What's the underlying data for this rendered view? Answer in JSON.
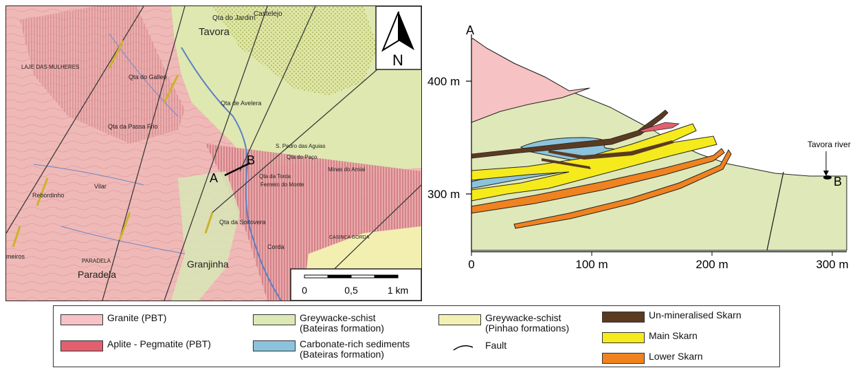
{
  "map": {
    "north_label": "N",
    "scale_ticks": [
      "0",
      "0,5",
      "1 km"
    ],
    "section_label_a": "A",
    "section_label_b": "B",
    "places": [
      {
        "name": "Tavora"
      },
      {
        "name": "LAJE DAS MULHERES"
      },
      {
        "name": "Qta do Jardim"
      },
      {
        "name": "Castelejo"
      },
      {
        "name": "Qta do Galleo"
      },
      {
        "name": "Qta de Avelera"
      },
      {
        "name": "Qta da Passa Frio"
      },
      {
        "name": "S. Pedro das Aguias"
      },
      {
        "name": "Qta do Paço"
      },
      {
        "name": "Minas do Amial"
      },
      {
        "name": "Qta da Torda"
      },
      {
        "name": "Ferreiro do Monte"
      },
      {
        "name": "Vilar"
      },
      {
        "name": "Rebordinho"
      },
      {
        "name": "Qta da Soitovera"
      },
      {
        "name": "Corda"
      },
      {
        "name": "CASINCA GORDA"
      },
      {
        "name": "PARADELA"
      },
      {
        "name": "Paradela"
      },
      {
        "name": "Granjinha"
      },
      {
        "name": "meiros"
      }
    ]
  },
  "section": {
    "label_a": "A",
    "label_b": "B",
    "river_label": "Tavora river",
    "y_ticks": [
      "400 m",
      "300 m"
    ],
    "x_ticks": [
      "0",
      "100 m",
      "200 m",
      "300 m"
    ]
  },
  "legend": {
    "items": [
      {
        "label": "Granite (PBT)",
        "color": "#f6c2c3"
      },
      {
        "label": "Aplite - Pegmatite (PBT)",
        "color": "#e2606e"
      },
      {
        "label": "Greywacke-schist\n(Bateiras formation)",
        "color": "#dde9b5"
      },
      {
        "label": "Carbonate-rich sediments\n(Bateiras formation)",
        "color": "#8cc3dc"
      },
      {
        "label": "Greywacke-schist\n(Pinhao formations)",
        "color": "#f2f0b3"
      },
      {
        "label": "Fault",
        "color": "#000000"
      },
      {
        "label": "Un-mineralised Skarn",
        "color": "#5b3a22"
      },
      {
        "label": "Main Skarn",
        "color": "#f5ea1c"
      },
      {
        "label": "Lower Skarn",
        "color": "#f08220"
      }
    ]
  }
}
